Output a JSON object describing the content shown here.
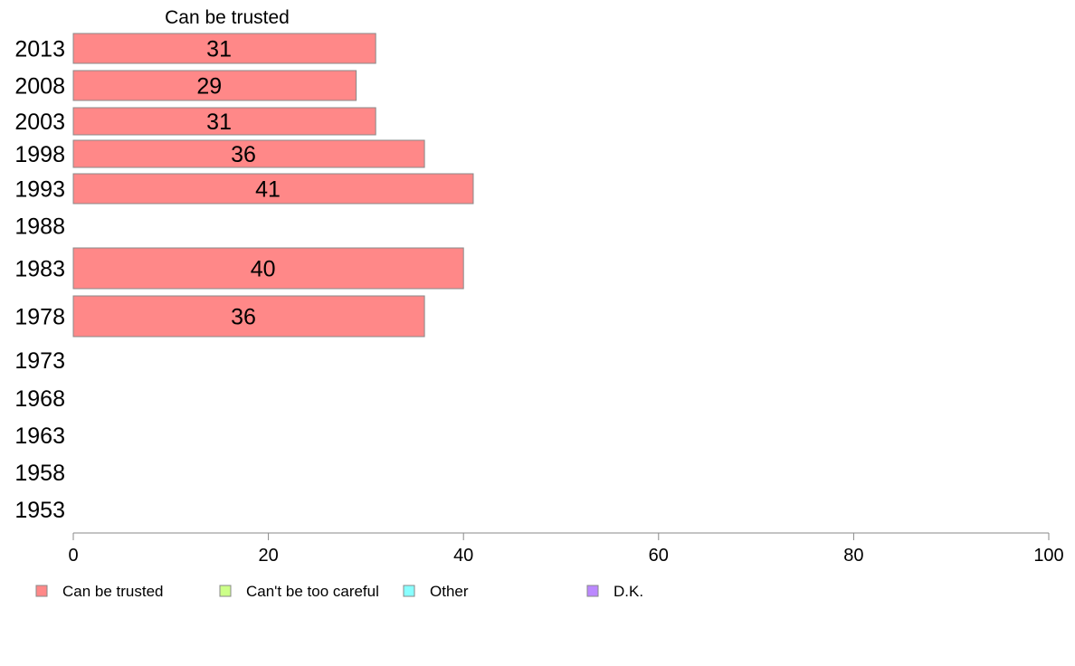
{
  "chart_data": {
    "type": "bar",
    "orientation": "horizontal",
    "title": "Can be trusted",
    "categories": [
      "2013",
      "2008",
      "2003",
      "1998",
      "1993",
      "1988",
      "1983",
      "1978",
      "1973",
      "1968",
      "1963",
      "1958",
      "1953"
    ],
    "series": [
      {
        "name": "Can be trusted",
        "color": "#ff8888",
        "values": [
          31,
          29,
          31,
          36,
          41,
          null,
          40,
          36,
          null,
          null,
          null,
          null,
          null
        ]
      }
    ],
    "xlim": [
      0,
      100
    ],
    "xticks": [
      0,
      20,
      40,
      60,
      80,
      100
    ],
    "grid": false,
    "legend": {
      "placement": "bottom",
      "entries": [
        {
          "label": "Can be trusted",
          "color": "#ff8888"
        },
        {
          "label": "Can't be too careful",
          "color": "#ccff88"
        },
        {
          "label": "Other",
          "color": "#88ffff"
        },
        {
          "label": "D.K.",
          "color": "#bb88ff"
        }
      ]
    }
  }
}
